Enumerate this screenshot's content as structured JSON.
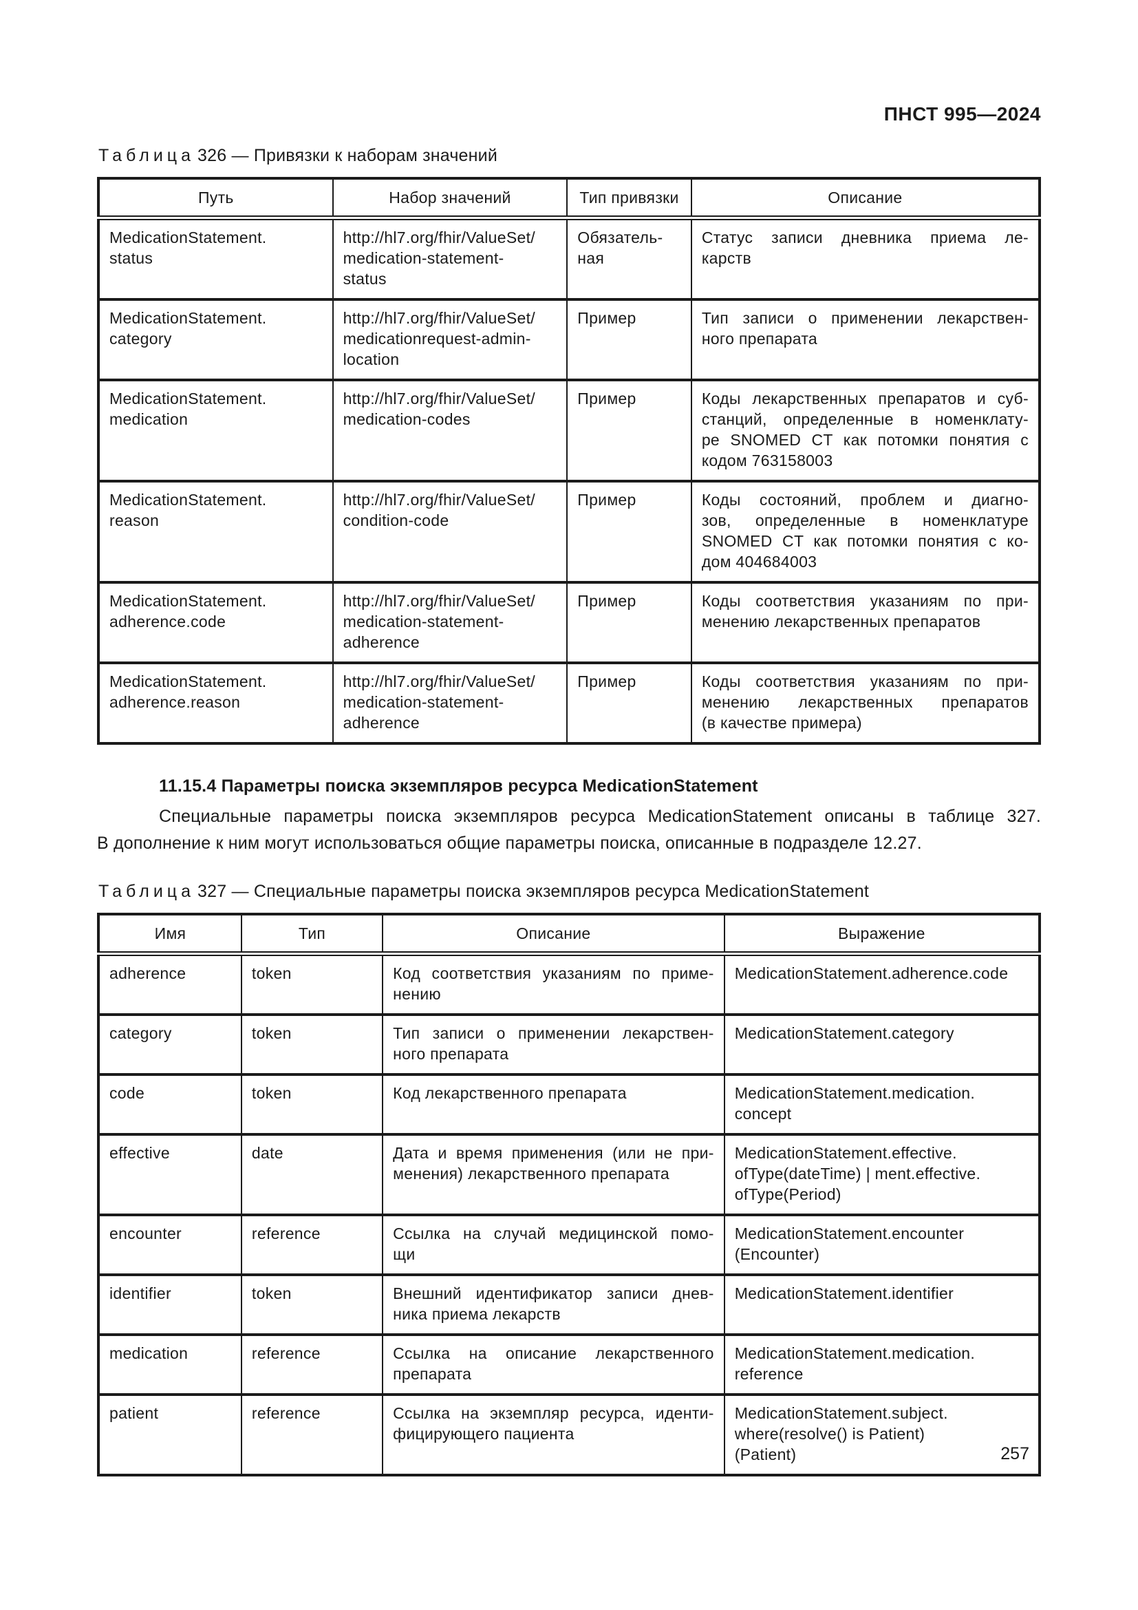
{
  "page": {
    "header_code": "ПНСТ 995—2024",
    "page_number": "257"
  },
  "table326": {
    "caption": {
      "word": "Таблица",
      "number": "326",
      "dash": "—",
      "text": "Привязки к наборам значений"
    },
    "columns": [
      "Путь",
      "Набор значений",
      "Тип привязки",
      "Описание"
    ],
    "rows": [
      {
        "path": "MedicationStatement.\nstatus",
        "valueset": "http://hl7.org/fhir/ValueSet/\nmedication-statement-\nstatus",
        "binding": "Обязатель-\nная",
        "desc": "Статус записи дневника приема ле-\nкарств"
      },
      {
        "path": "MedicationStatement.\ncategory",
        "valueset": "http://hl7.org/fhir/ValueSet/\nmedicationrequest-admin-\nlocation",
        "binding": "Пример",
        "desc": "Тип записи о применении лекарствен-\nного препарата"
      },
      {
        "path": "MedicationStatement.\nmedication",
        "valueset": "http://hl7.org/fhir/ValueSet/\nmedication-codes",
        "binding": "Пример",
        "desc": "Коды лекарственных препаратов и суб-\nстанций, определенные в номенклату-\nре SNOMED CT как потомки понятия с\nкодом 763158003"
      },
      {
        "path": "MedicationStatement.\nreason",
        "valueset": "http://hl7.org/fhir/ValueSet/\ncondition-code",
        "binding": "Пример",
        "desc": "Коды состояний, проблем и диагно-\nзов, определенные в номенклатуре\nSNOMED CT как потомки понятия с ко-\nдом 404684003"
      },
      {
        "path": "MedicationStatement.\nadherence.code",
        "valueset": "http://hl7.org/fhir/ValueSet/\nmedication-statement-\nadherence",
        "binding": "Пример",
        "desc": "Коды соответствия указаниям по при-\nменению лекарственных препаратов"
      },
      {
        "path": "MedicationStatement.\nadherence.reason",
        "valueset": "http://hl7.org/fhir/ValueSet/\nmedication-statement-\nadherence",
        "binding": "Пример",
        "desc": "Коды соответствия указаниям по при-\nменению лекарственных препаратов\n(в качестве примера)"
      }
    ]
  },
  "section": {
    "heading": "11.15.4 Параметры поиска экземпляров ресурса MedicationStatement",
    "paragraph": "Специальные параметры поиска экземпляров ресурса MedicationStatement описаны в таблице 327.\nВ дополнение к ним могут использоваться общие параметры поиска, описанные в подразделе 12.27."
  },
  "table327": {
    "caption": {
      "word": "Таблица",
      "number": "327",
      "dash": "—",
      "text": "Специальные параметры поиска экземпляров ресурса MedicationStatement"
    },
    "columns": [
      "Имя",
      "Тип",
      "Описание",
      "Выражение"
    ],
    "rows": [
      {
        "name": "adherence",
        "type": "token",
        "desc": "Код соответствия указаниям по приме-\nнению",
        "expr": "MedicationStatement.adherence.code"
      },
      {
        "name": "category",
        "type": "token",
        "desc": "Тип записи о применении лекарствен-\nного препарата",
        "expr": "MedicationStatement.category"
      },
      {
        "name": "code",
        "type": "token",
        "desc": "Код лекарственного препарата",
        "expr": "MedicationStatement.medication.\nconcept"
      },
      {
        "name": "effective",
        "type": "date",
        "desc": "Дата и время применения (или не при-\nменения) лекарственного препарата",
        "expr": "MedicationStatement.effective.\nofType(dateTime) | ment.effective.\nofType(Period)"
      },
      {
        "name": "encounter",
        "type": "reference",
        "desc": "Ссылка на случай медицинской помо-\nщи",
        "expr": "MedicationStatement.encounter\n(Encounter)"
      },
      {
        "name": "identifier",
        "type": "token",
        "desc": "Внешний идентификатор записи днев-\nника приема лекарств",
        "expr": "MedicationStatement.identifier"
      },
      {
        "name": "medication",
        "type": "reference",
        "desc": "Ссылка на описание лекарственного\nпрепарата",
        "expr": "MedicationStatement.medication.\nreference"
      },
      {
        "name": "patient",
        "type": "reference",
        "desc": "Ссылка на экземпляр ресурса, иденти-\nфицирующего пациента",
        "expr": "MedicationStatement.subject.\nwhere(resolve() is Patient)\n(Patient)"
      }
    ]
  }
}
